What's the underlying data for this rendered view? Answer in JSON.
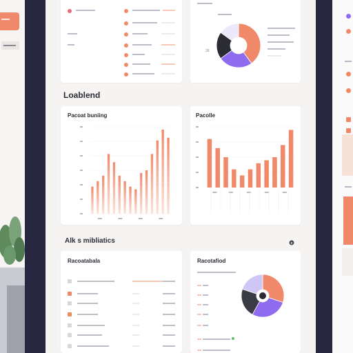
{
  "colors": {
    "accent": "#f0896a",
    "purple": "#8f6bf0",
    "dark": "#272742",
    "grey": "#b8b8c2"
  },
  "sections": {
    "title_1": "Loablend",
    "title_2": "Alk s mibliatics"
  },
  "cards": {
    "bar_chart_1": {
      "title": "Pacoat buniing"
    },
    "bar_chart_2": {
      "title": "Pacolle"
    },
    "list_card": {
      "title": "Racoatabala"
    },
    "donut_card": {
      "title": "Racotafiod"
    }
  },
  "info_icon": "info-icon",
  "top_pie_card": {
    "label": "38"
  },
  "chart_data": [
    {
      "type": "bar",
      "values": [
        10,
        12,
        14,
        22,
        19,
        14,
        12,
        10,
        9,
        15,
        16,
        22,
        27,
        31,
        28
      ],
      "color": "#f0896a",
      "gradient": true
    },
    {
      "type": "bar",
      "values": [
        16,
        13,
        10,
        6,
        4,
        6,
        8,
        9,
        10,
        14,
        19
      ],
      "color": "#f0896a",
      "gradient": false
    },
    {
      "type": "pie",
      "values": [
        40,
        25,
        20,
        15
      ],
      "colors": [
        "#f0896a",
        "#8f6bf0",
        "#2b2b34",
        "#ede9fb"
      ]
    },
    {
      "type": "pie",
      "values": [
        30,
        28,
        22,
        20
      ],
      "colors": [
        "#f0896a",
        "#8f6bf0",
        "#3b3b45",
        "#cfc6f6"
      ]
    }
  ]
}
